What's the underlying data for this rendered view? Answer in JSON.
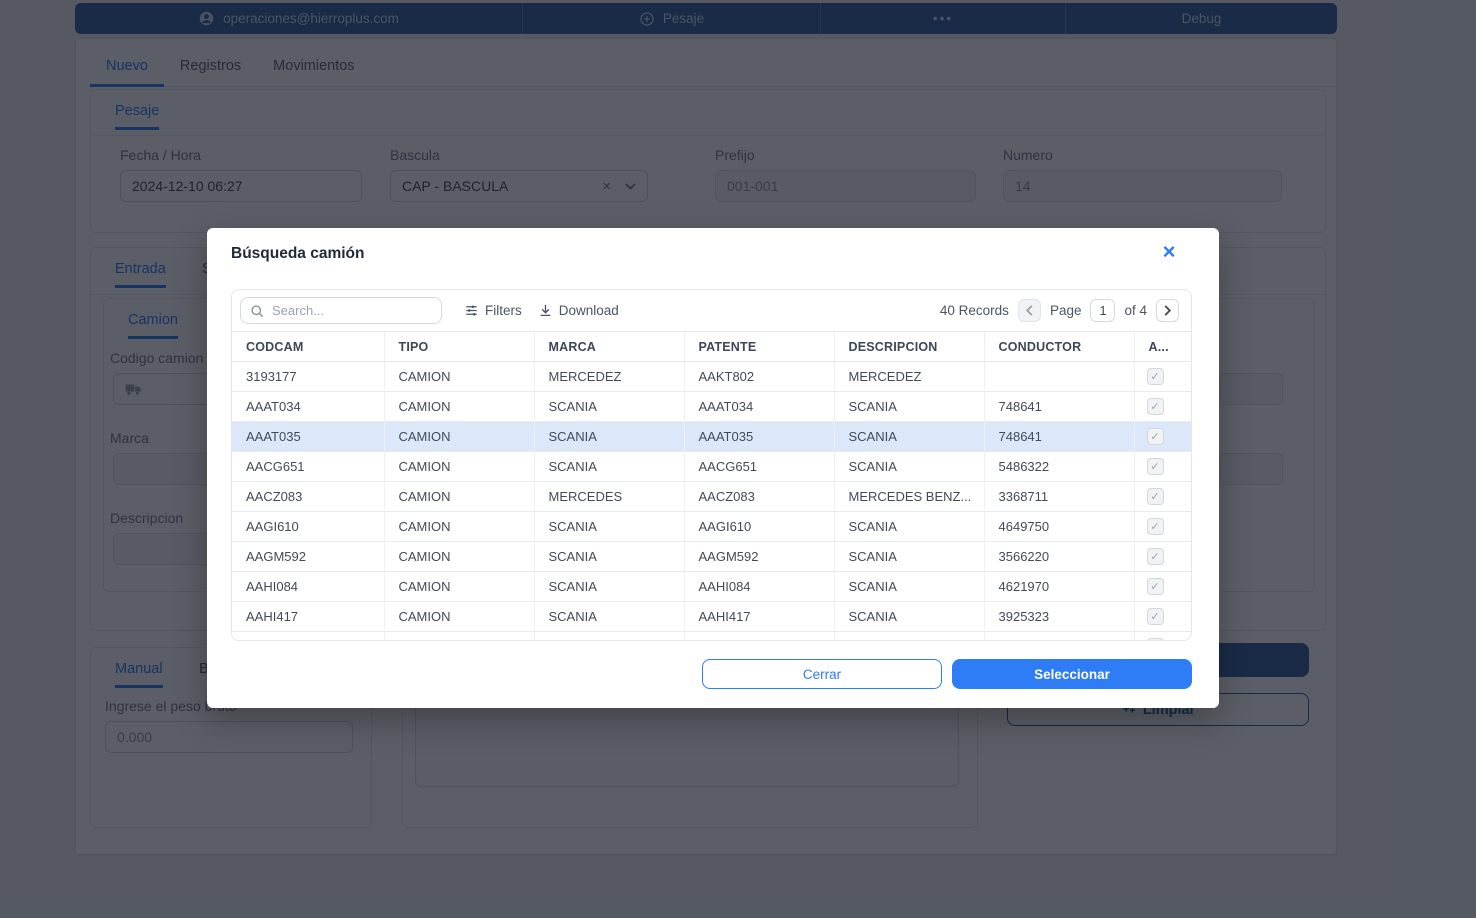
{
  "colors": {
    "accent": "#2e7cf6",
    "navy": "#33619e",
    "selected_row": "#dce8fa"
  },
  "topbar": {
    "account_label": "operaciones@hierroplus.com",
    "pesaje_label": "Pesaje",
    "more_label": "•••",
    "debug_label": "Debug"
  },
  "nav_tabs": {
    "nuevo": "Nuevo",
    "registros": "Registros",
    "movimientos": "Movimientos"
  },
  "pesaje_section": {
    "tab_label": "Pesaje",
    "fecha_label": "Fecha / Hora",
    "fecha_value": "2024-12-10 06:27",
    "bascula_label": "Bascula",
    "bascula_value": "CAP - BASCULA",
    "prefijo_label": "Prefijo",
    "prefijo_value": "001-001",
    "numero_label": "Numero",
    "numero_value": "14"
  },
  "entrada_section": {
    "tab_entrada": "Entrada",
    "tab_salida_partial": "S",
    "tab_camion": "Camion",
    "codigo_camion_label": "Codigo camion",
    "marca_label": "Marca",
    "descripcion_label": "Descripcion"
  },
  "peso_section": {
    "tab_manual": "Manual",
    "tab_bascula_partial": "B",
    "peso_label": "Ingrese el peso bruto",
    "peso_placeholder": "0.000",
    "limpiar_label": "Limpiar"
  },
  "modal": {
    "title": "Búsqueda camión",
    "search_placeholder": "Search...",
    "filters_label": "Filters",
    "download_label": "Download",
    "records_label": "40 Records",
    "page_label": "Page",
    "page_value": "1",
    "page_of_label": "of 4",
    "close_label": "Cerrar",
    "select_label": "Seleccionar",
    "columns": [
      "CODCAM",
      "TIPO",
      "MARCA",
      "PATENTE",
      "DESCRIPCION",
      "CONDUCTOR",
      "A..."
    ],
    "rows": [
      {
        "cells": [
          "3193177",
          "CAMION",
          "MERCEDEZ",
          "AAKT802",
          "MERCEDEZ",
          ""
        ],
        "checked": true,
        "selected": false
      },
      {
        "cells": [
          "AAAT034",
          "CAMION",
          "SCANIA",
          "AAAT034",
          "SCANIA",
          "748641"
        ],
        "checked": true,
        "selected": false
      },
      {
        "cells": [
          "AAAT035",
          "CAMION",
          "SCANIA",
          "AAAT035",
          "SCANIA",
          "748641"
        ],
        "checked": true,
        "selected": true
      },
      {
        "cells": [
          "AACG651",
          "CAMION",
          "SCANIA",
          "AACG651",
          "SCANIA",
          "5486322"
        ],
        "checked": true,
        "selected": false
      },
      {
        "cells": [
          "AACZ083",
          "CAMION",
          "MERCEDES",
          "AACZ083",
          "MERCEDES BENZ...",
          "3368711"
        ],
        "checked": true,
        "selected": false
      },
      {
        "cells": [
          "AAGI610",
          "CAMION",
          "SCANIA",
          "AAGI610",
          "SCANIA",
          "4649750"
        ],
        "checked": true,
        "selected": false
      },
      {
        "cells": [
          "AAGM592",
          "CAMION",
          "SCANIA",
          "AAGM592",
          "SCANIA",
          "3566220"
        ],
        "checked": true,
        "selected": false
      },
      {
        "cells": [
          "AAHI084",
          "CAMION",
          "SCANIA",
          "AAHI084",
          "SCANIA",
          "4621970"
        ],
        "checked": true,
        "selected": false
      },
      {
        "cells": [
          "AAHI417",
          "CAMION",
          "SCANIA",
          "AAHI417",
          "SCANIA",
          "3925323"
        ],
        "checked": true,
        "selected": false
      }
    ],
    "has_partial_row": true
  }
}
